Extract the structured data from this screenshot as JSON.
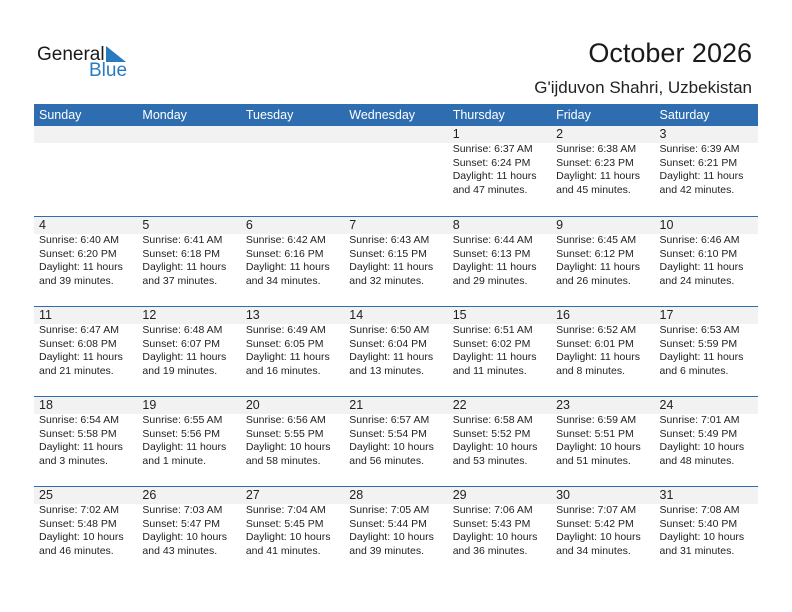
{
  "logo": {
    "general": "General",
    "blue": "Blue",
    "color": "#2a7ac0"
  },
  "title": "October 2026",
  "location": "G'ijduvon Shahri, Uzbekistan",
  "header_color": "#2e6db0",
  "weekdays": [
    "Sunday",
    "Monday",
    "Tuesday",
    "Wednesday",
    "Thursday",
    "Friday",
    "Saturday"
  ],
  "weeks": [
    [
      null,
      null,
      null,
      null,
      {
        "day": "1",
        "sunrise": "Sunrise: 6:37 AM",
        "sunset": "Sunset: 6:24 PM",
        "daylight": "Daylight: 11 hours",
        "daylight2": "and 47 minutes."
      },
      {
        "day": "2",
        "sunrise": "Sunrise: 6:38 AM",
        "sunset": "Sunset: 6:23 PM",
        "daylight": "Daylight: 11 hours",
        "daylight2": "and 45 minutes."
      },
      {
        "day": "3",
        "sunrise": "Sunrise: 6:39 AM",
        "sunset": "Sunset: 6:21 PM",
        "daylight": "Daylight: 11 hours",
        "daylight2": "and 42 minutes."
      }
    ],
    [
      {
        "day": "4",
        "sunrise": "Sunrise: 6:40 AM",
        "sunset": "Sunset: 6:20 PM",
        "daylight": "Daylight: 11 hours",
        "daylight2": "and 39 minutes."
      },
      {
        "day": "5",
        "sunrise": "Sunrise: 6:41 AM",
        "sunset": "Sunset: 6:18 PM",
        "daylight": "Daylight: 11 hours",
        "daylight2": "and 37 minutes."
      },
      {
        "day": "6",
        "sunrise": "Sunrise: 6:42 AM",
        "sunset": "Sunset: 6:16 PM",
        "daylight": "Daylight: 11 hours",
        "daylight2": "and 34 minutes."
      },
      {
        "day": "7",
        "sunrise": "Sunrise: 6:43 AM",
        "sunset": "Sunset: 6:15 PM",
        "daylight": "Daylight: 11 hours",
        "daylight2": "and 32 minutes."
      },
      {
        "day": "8",
        "sunrise": "Sunrise: 6:44 AM",
        "sunset": "Sunset: 6:13 PM",
        "daylight": "Daylight: 11 hours",
        "daylight2": "and 29 minutes."
      },
      {
        "day": "9",
        "sunrise": "Sunrise: 6:45 AM",
        "sunset": "Sunset: 6:12 PM",
        "daylight": "Daylight: 11 hours",
        "daylight2": "and 26 minutes."
      },
      {
        "day": "10",
        "sunrise": "Sunrise: 6:46 AM",
        "sunset": "Sunset: 6:10 PM",
        "daylight": "Daylight: 11 hours",
        "daylight2": "and 24 minutes."
      }
    ],
    [
      {
        "day": "11",
        "sunrise": "Sunrise: 6:47 AM",
        "sunset": "Sunset: 6:08 PM",
        "daylight": "Daylight: 11 hours",
        "daylight2": "and 21 minutes."
      },
      {
        "day": "12",
        "sunrise": "Sunrise: 6:48 AM",
        "sunset": "Sunset: 6:07 PM",
        "daylight": "Daylight: 11 hours",
        "daylight2": "and 19 minutes."
      },
      {
        "day": "13",
        "sunrise": "Sunrise: 6:49 AM",
        "sunset": "Sunset: 6:05 PM",
        "daylight": "Daylight: 11 hours",
        "daylight2": "and 16 minutes."
      },
      {
        "day": "14",
        "sunrise": "Sunrise: 6:50 AM",
        "sunset": "Sunset: 6:04 PM",
        "daylight": "Daylight: 11 hours",
        "daylight2": "and 13 minutes."
      },
      {
        "day": "15",
        "sunrise": "Sunrise: 6:51 AM",
        "sunset": "Sunset: 6:02 PM",
        "daylight": "Daylight: 11 hours",
        "daylight2": "and 11 minutes."
      },
      {
        "day": "16",
        "sunrise": "Sunrise: 6:52 AM",
        "sunset": "Sunset: 6:01 PM",
        "daylight": "Daylight: 11 hours",
        "daylight2": "and 8 minutes."
      },
      {
        "day": "17",
        "sunrise": "Sunrise: 6:53 AM",
        "sunset": "Sunset: 5:59 PM",
        "daylight": "Daylight: 11 hours",
        "daylight2": "and 6 minutes."
      }
    ],
    [
      {
        "day": "18",
        "sunrise": "Sunrise: 6:54 AM",
        "sunset": "Sunset: 5:58 PM",
        "daylight": "Daylight: 11 hours",
        "daylight2": "and 3 minutes."
      },
      {
        "day": "19",
        "sunrise": "Sunrise: 6:55 AM",
        "sunset": "Sunset: 5:56 PM",
        "daylight": "Daylight: 11 hours",
        "daylight2": "and 1 minute."
      },
      {
        "day": "20",
        "sunrise": "Sunrise: 6:56 AM",
        "sunset": "Sunset: 5:55 PM",
        "daylight": "Daylight: 10 hours",
        "daylight2": "and 58 minutes."
      },
      {
        "day": "21",
        "sunrise": "Sunrise: 6:57 AM",
        "sunset": "Sunset: 5:54 PM",
        "daylight": "Daylight: 10 hours",
        "daylight2": "and 56 minutes."
      },
      {
        "day": "22",
        "sunrise": "Sunrise: 6:58 AM",
        "sunset": "Sunset: 5:52 PM",
        "daylight": "Daylight: 10 hours",
        "daylight2": "and 53 minutes."
      },
      {
        "day": "23",
        "sunrise": "Sunrise: 6:59 AM",
        "sunset": "Sunset: 5:51 PM",
        "daylight": "Daylight: 10 hours",
        "daylight2": "and 51 minutes."
      },
      {
        "day": "24",
        "sunrise": "Sunrise: 7:01 AM",
        "sunset": "Sunset: 5:49 PM",
        "daylight": "Daylight: 10 hours",
        "daylight2": "and 48 minutes."
      }
    ],
    [
      {
        "day": "25",
        "sunrise": "Sunrise: 7:02 AM",
        "sunset": "Sunset: 5:48 PM",
        "daylight": "Daylight: 10 hours",
        "daylight2": "and 46 minutes."
      },
      {
        "day": "26",
        "sunrise": "Sunrise: 7:03 AM",
        "sunset": "Sunset: 5:47 PM",
        "daylight": "Daylight: 10 hours",
        "daylight2": "and 43 minutes."
      },
      {
        "day": "27",
        "sunrise": "Sunrise: 7:04 AM",
        "sunset": "Sunset: 5:45 PM",
        "daylight": "Daylight: 10 hours",
        "daylight2": "and 41 minutes."
      },
      {
        "day": "28",
        "sunrise": "Sunrise: 7:05 AM",
        "sunset": "Sunset: 5:44 PM",
        "daylight": "Daylight: 10 hours",
        "daylight2": "and 39 minutes."
      },
      {
        "day": "29",
        "sunrise": "Sunrise: 7:06 AM",
        "sunset": "Sunset: 5:43 PM",
        "daylight": "Daylight: 10 hours",
        "daylight2": "and 36 minutes."
      },
      {
        "day": "30",
        "sunrise": "Sunrise: 7:07 AM",
        "sunset": "Sunset: 5:42 PM",
        "daylight": "Daylight: 10 hours",
        "daylight2": "and 34 minutes."
      },
      {
        "day": "31",
        "sunrise": "Sunrise: 7:08 AM",
        "sunset": "Sunset: 5:40 PM",
        "daylight": "Daylight: 10 hours",
        "daylight2": "and 31 minutes."
      }
    ]
  ]
}
